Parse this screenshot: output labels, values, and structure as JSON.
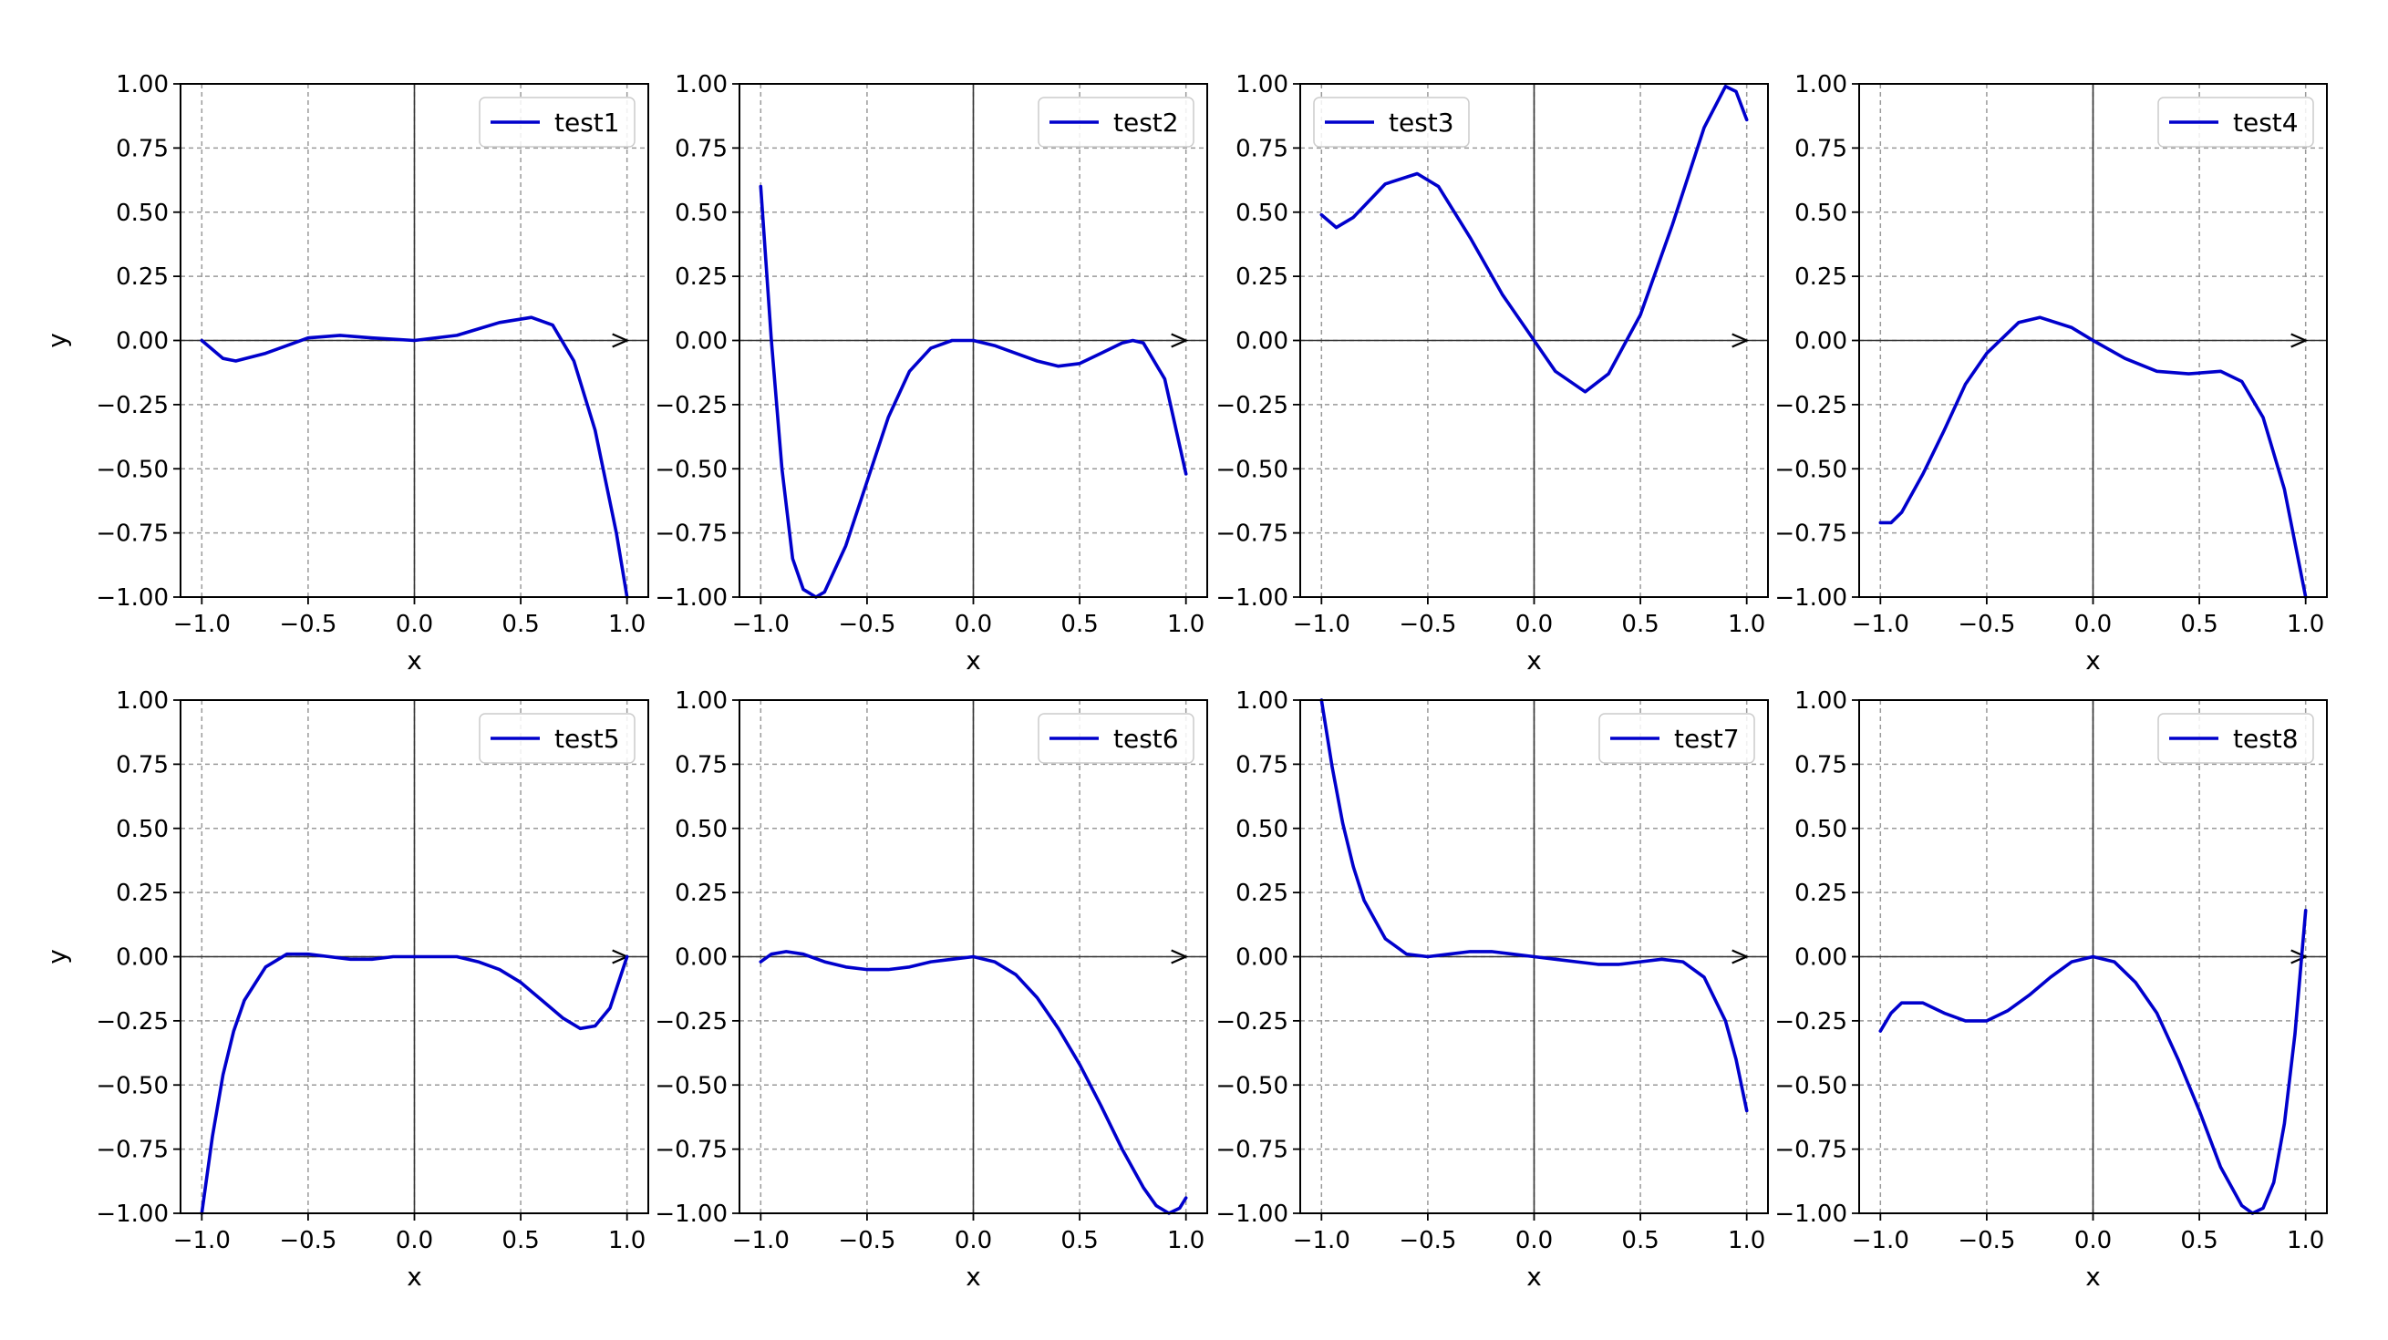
{
  "chart_data": [
    {
      "type": "line",
      "xlabel": "x",
      "ylabel": "y",
      "xlim": [
        -1.0,
        1.0
      ],
      "ylim": [
        -1.0,
        1.0
      ],
      "xticks": [
        "−1.0",
        "−0.5",
        "0.0",
        "0.5",
        "1.0"
      ],
      "yticks": [
        "1.00",
        "0.75",
        "0.50",
        "0.25",
        "0.00",
        "−0.25",
        "−0.50",
        "−0.75",
        "−1.00"
      ],
      "grid": true,
      "legend_position": "top-right",
      "series": [
        {
          "name": "test1",
          "color": "#0000cc",
          "x": [
            -1.0,
            -0.9,
            -0.84,
            -0.7,
            -0.5,
            -0.35,
            -0.2,
            0.0,
            0.2,
            0.4,
            0.55,
            0.65,
            0.75,
            0.85,
            0.95,
            1.0
          ],
          "y": [
            0.0,
            -0.07,
            -0.08,
            -0.05,
            0.01,
            0.02,
            0.01,
            0.0,
            0.02,
            0.07,
            0.09,
            0.06,
            -0.08,
            -0.35,
            -0.75,
            -1.0
          ]
        }
      ]
    },
    {
      "type": "line",
      "xlabel": "x",
      "ylabel": "",
      "xlim": [
        -1.0,
        1.0
      ],
      "ylim": [
        -1.0,
        1.0
      ],
      "xticks": [
        "−1.0",
        "−0.5",
        "0.0",
        "0.5",
        "1.0"
      ],
      "yticks": [
        "1.00",
        "0.75",
        "0.50",
        "0.25",
        "0.00",
        "−0.25",
        "−0.50",
        "−0.75",
        "−1.00"
      ],
      "grid": true,
      "legend_position": "top-right",
      "series": [
        {
          "name": "test2",
          "color": "#0000cc",
          "x": [
            -1.0,
            -0.95,
            -0.9,
            -0.85,
            -0.8,
            -0.74,
            -0.7,
            -0.6,
            -0.5,
            -0.4,
            -0.3,
            -0.2,
            -0.1,
            0.0,
            0.1,
            0.2,
            0.3,
            0.4,
            0.5,
            0.6,
            0.7,
            0.75,
            0.8,
            0.9,
            1.0
          ],
          "y": [
            0.6,
            0.0,
            -0.5,
            -0.85,
            -0.97,
            -1.0,
            -0.98,
            -0.8,
            -0.55,
            -0.3,
            -0.12,
            -0.03,
            0.0,
            0.0,
            -0.02,
            -0.05,
            -0.08,
            -0.1,
            -0.09,
            -0.05,
            -0.01,
            0.0,
            -0.01,
            -0.15,
            -0.52
          ]
        }
      ]
    },
    {
      "type": "line",
      "xlabel": "x",
      "ylabel": "",
      "xlim": [
        -1.0,
        1.0
      ],
      "ylim": [
        -1.0,
        1.0
      ],
      "xticks": [
        "−1.0",
        "−0.5",
        "0.0",
        "0.5",
        "1.0"
      ],
      "yticks": [
        "1.00",
        "0.75",
        "0.50",
        "0.25",
        "0.00",
        "−0.25",
        "−0.50",
        "−0.75",
        "−1.00"
      ],
      "grid": true,
      "legend_position": "top-left",
      "series": [
        {
          "name": "test3",
          "color": "#0000cc",
          "x": [
            -1.0,
            -0.93,
            -0.85,
            -0.7,
            -0.55,
            -0.45,
            -0.3,
            -0.15,
            0.0,
            0.1,
            0.24,
            0.35,
            0.5,
            0.65,
            0.8,
            0.9,
            0.95,
            1.0
          ],
          "y": [
            0.49,
            0.44,
            0.48,
            0.61,
            0.65,
            0.6,
            0.4,
            0.18,
            0.0,
            -0.12,
            -0.2,
            -0.13,
            0.1,
            0.45,
            0.83,
            0.99,
            0.97,
            0.86
          ]
        }
      ]
    },
    {
      "type": "line",
      "xlabel": "x",
      "ylabel": "",
      "xlim": [
        -1.0,
        1.0
      ],
      "ylim": [
        -1.0,
        1.0
      ],
      "xticks": [
        "−1.0",
        "−0.5",
        "0.0",
        "0.5",
        "1.0"
      ],
      "yticks": [
        "1.00",
        "0.75",
        "0.50",
        "0.25",
        "0.00",
        "−0.25",
        "−0.50",
        "−0.75",
        "−1.00"
      ],
      "grid": true,
      "legend_position": "top-right",
      "series": [
        {
          "name": "test4",
          "color": "#0000cc",
          "x": [
            -1.0,
            -0.95,
            -0.9,
            -0.8,
            -0.7,
            -0.6,
            -0.5,
            -0.35,
            -0.25,
            -0.1,
            0.0,
            0.15,
            0.3,
            0.45,
            0.6,
            0.7,
            0.8,
            0.9,
            1.0
          ],
          "y": [
            -0.71,
            -0.71,
            -0.67,
            -0.52,
            -0.35,
            -0.17,
            -0.05,
            0.07,
            0.09,
            0.05,
            0.0,
            -0.07,
            -0.12,
            -0.13,
            -0.12,
            -0.16,
            -0.3,
            -0.58,
            -1.0
          ]
        }
      ]
    },
    {
      "type": "line",
      "xlabel": "x",
      "ylabel": "y",
      "xlim": [
        -1.0,
        1.0
      ],
      "ylim": [
        -1.0,
        1.0
      ],
      "xticks": [
        "−1.0",
        "−0.5",
        "0.0",
        "0.5",
        "1.0"
      ],
      "yticks": [
        "1.00",
        "0.75",
        "0.50",
        "0.25",
        "0.00",
        "−0.25",
        "−0.50",
        "−0.75",
        "−1.00"
      ],
      "grid": true,
      "legend_position": "top-right",
      "series": [
        {
          "name": "test5",
          "color": "#0000cc",
          "x": [
            -1.0,
            -0.95,
            -0.9,
            -0.85,
            -0.8,
            -0.7,
            -0.6,
            -0.5,
            -0.4,
            -0.3,
            -0.2,
            -0.1,
            0.0,
            0.1,
            0.2,
            0.3,
            0.4,
            0.5,
            0.6,
            0.7,
            0.78,
            0.85,
            0.92,
            1.0
          ],
          "y": [
            -1.0,
            -0.7,
            -0.46,
            -0.29,
            -0.17,
            -0.04,
            0.01,
            0.01,
            0.0,
            -0.01,
            -0.01,
            0.0,
            0.0,
            0.0,
            0.0,
            -0.02,
            -0.05,
            -0.1,
            -0.17,
            -0.24,
            -0.28,
            -0.27,
            -0.2,
            0.0
          ]
        }
      ]
    },
    {
      "type": "line",
      "xlabel": "x",
      "ylabel": "",
      "xlim": [
        -1.0,
        1.0
      ],
      "ylim": [
        -1.0,
        1.0
      ],
      "xticks": [
        "−1.0",
        "−0.5",
        "0.0",
        "0.5",
        "1.0"
      ],
      "yticks": [
        "1.00",
        "0.75",
        "0.50",
        "0.25",
        "0.00",
        "−0.25",
        "−0.50",
        "−0.75",
        "−1.00"
      ],
      "grid": true,
      "legend_position": "top-right",
      "series": [
        {
          "name": "test6",
          "color": "#0000cc",
          "x": [
            -1.0,
            -0.95,
            -0.88,
            -0.8,
            -0.7,
            -0.6,
            -0.5,
            -0.4,
            -0.3,
            -0.2,
            -0.1,
            0.0,
            0.1,
            0.2,
            0.3,
            0.4,
            0.5,
            0.6,
            0.7,
            0.8,
            0.86,
            0.92,
            0.97,
            1.0
          ],
          "y": [
            -0.02,
            0.01,
            0.02,
            0.01,
            -0.02,
            -0.04,
            -0.05,
            -0.05,
            -0.04,
            -0.02,
            -0.01,
            0.0,
            -0.02,
            -0.07,
            -0.16,
            -0.28,
            -0.42,
            -0.58,
            -0.75,
            -0.9,
            -0.97,
            -1.0,
            -0.98,
            -0.94
          ]
        }
      ]
    },
    {
      "type": "line",
      "xlabel": "x",
      "ylabel": "",
      "xlim": [
        -1.0,
        1.0
      ],
      "ylim": [
        -1.0,
        1.0
      ],
      "xticks": [
        "−1.0",
        "−0.5",
        "0.0",
        "0.5",
        "1.0"
      ],
      "yticks": [
        "1.00",
        "0.75",
        "0.50",
        "0.25",
        "0.00",
        "−0.25",
        "−0.50",
        "−0.75",
        "−1.00"
      ],
      "grid": true,
      "legend_position": "top-right",
      "series": [
        {
          "name": "test7",
          "color": "#0000cc",
          "x": [
            -1.0,
            -0.95,
            -0.9,
            -0.85,
            -0.8,
            -0.7,
            -0.6,
            -0.5,
            -0.4,
            -0.3,
            -0.2,
            -0.1,
            0.0,
            0.1,
            0.2,
            0.3,
            0.4,
            0.5,
            0.6,
            0.7,
            0.8,
            0.9,
            0.95,
            1.0
          ],
          "y": [
            1.0,
            0.74,
            0.52,
            0.35,
            0.22,
            0.07,
            0.01,
            0.0,
            0.01,
            0.02,
            0.02,
            0.01,
            0.0,
            -0.01,
            -0.02,
            -0.03,
            -0.03,
            -0.02,
            -0.01,
            -0.02,
            -0.08,
            -0.25,
            -0.4,
            -0.6
          ]
        }
      ]
    },
    {
      "type": "line",
      "xlabel": "x",
      "ylabel": "",
      "xlim": [
        -1.0,
        1.0
      ],
      "ylim": [
        -1.0,
        1.0
      ],
      "xticks": [
        "−1.0",
        "−0.5",
        "0.0",
        "0.5",
        "1.0"
      ],
      "yticks": [
        "1.00",
        "0.75",
        "0.50",
        "0.25",
        "0.00",
        "−0.25",
        "−0.50",
        "−0.75",
        "−1.00"
      ],
      "grid": true,
      "legend_position": "top-right",
      "series": [
        {
          "name": "test8",
          "color": "#0000cc",
          "x": [
            -1.0,
            -0.95,
            -0.9,
            -0.8,
            -0.7,
            -0.6,
            -0.5,
            -0.4,
            -0.3,
            -0.2,
            -0.1,
            0.0,
            0.1,
            0.2,
            0.3,
            0.4,
            0.5,
            0.6,
            0.7,
            0.75,
            0.8,
            0.85,
            0.9,
            0.95,
            1.0
          ],
          "y": [
            -0.29,
            -0.22,
            -0.18,
            -0.18,
            -0.22,
            -0.25,
            -0.25,
            -0.21,
            -0.15,
            -0.08,
            -0.02,
            0.0,
            -0.02,
            -0.1,
            -0.22,
            -0.4,
            -0.6,
            -0.82,
            -0.97,
            -1.0,
            -0.98,
            -0.88,
            -0.65,
            -0.3,
            0.18
          ]
        }
      ]
    }
  ]
}
